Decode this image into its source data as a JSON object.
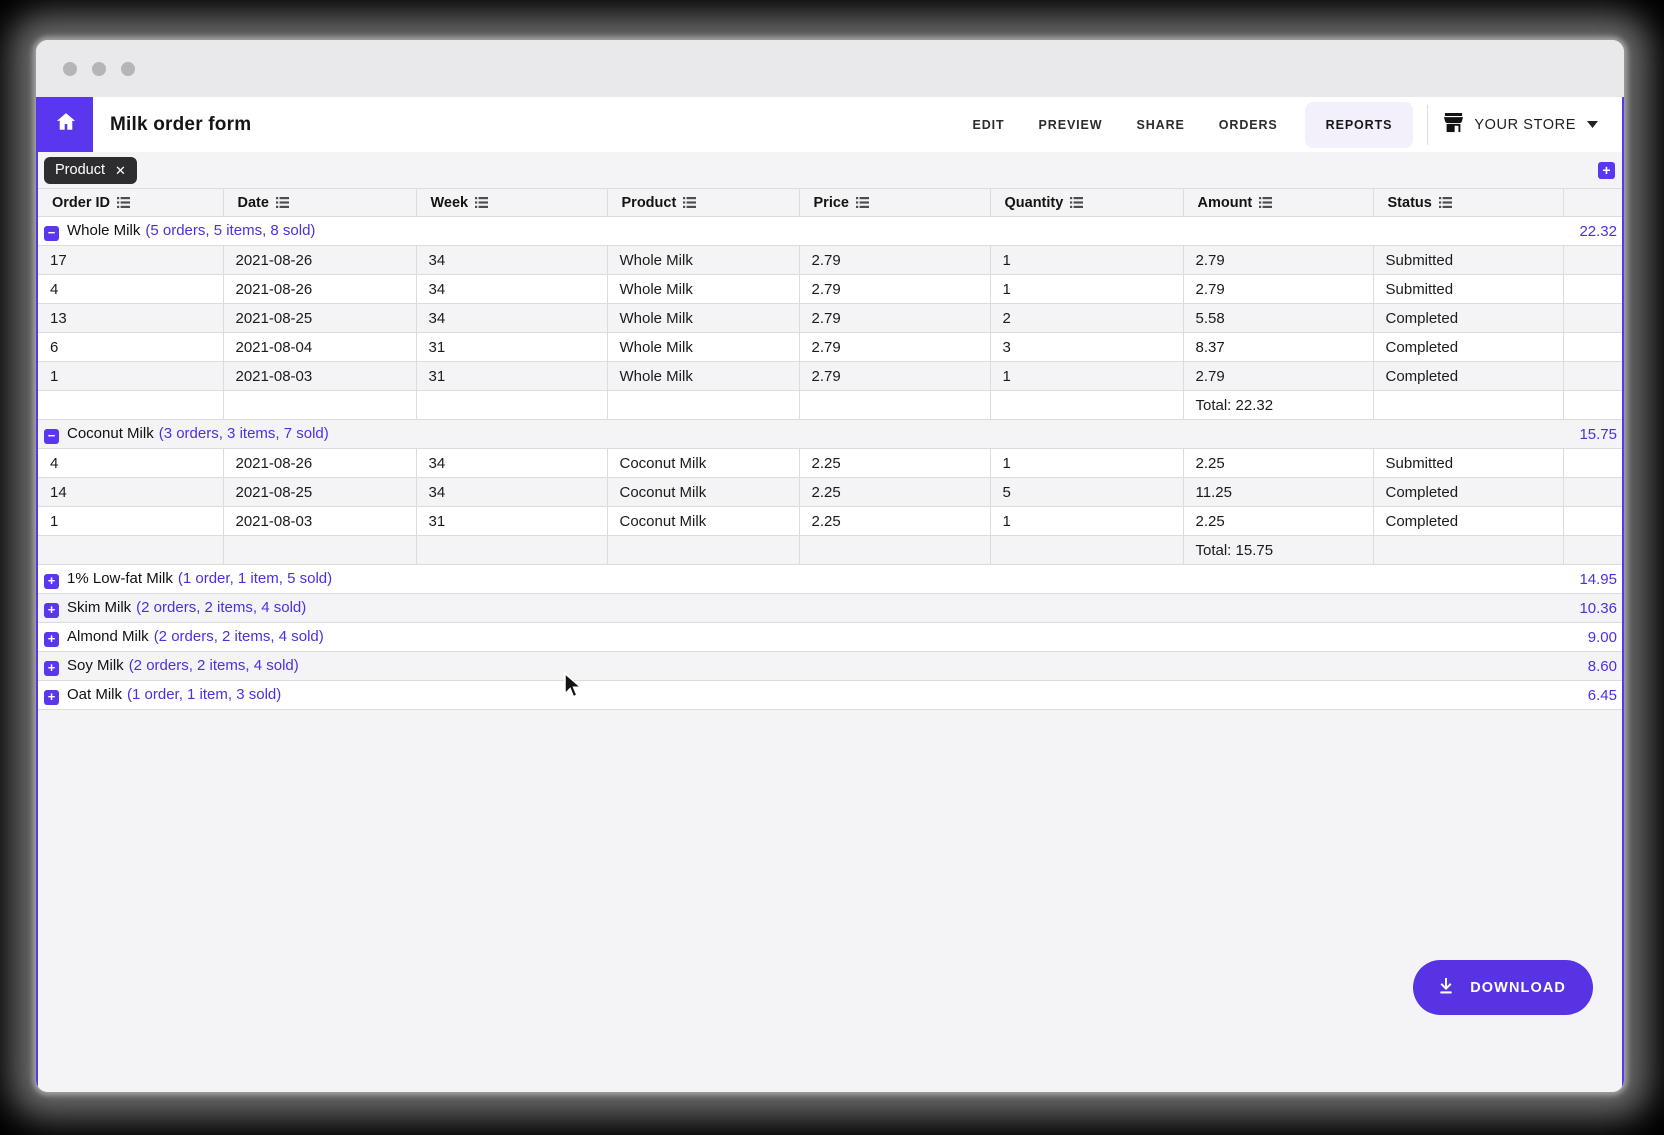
{
  "header": {
    "app_title": "Milk order form",
    "nav": [
      {
        "label": "EDIT"
      },
      {
        "label": "PREVIEW"
      },
      {
        "label": "SHARE"
      },
      {
        "label": "ORDERS"
      },
      {
        "label": "REPORTS"
      }
    ],
    "active_nav": "REPORTS",
    "store_label": "YOUR STORE"
  },
  "filter_bar": {
    "chip_label": "Product"
  },
  "icons": {
    "close": "✕",
    "plus": "+",
    "collapse": "−",
    "expand": "+"
  },
  "table": {
    "columns": [
      "Order ID",
      "Date",
      "Week",
      "Product",
      "Price",
      "Quantity",
      "Amount",
      "Status"
    ],
    "groups": [
      {
        "name": "Whole Milk",
        "summary": "(5 orders, 5 items, 8 sold)",
        "total": "22.32",
        "expanded": true,
        "rows": [
          [
            "17",
            "2021-08-26",
            "34",
            "Whole Milk",
            "2.79",
            "1",
            "2.79",
            "Submitted"
          ],
          [
            "4",
            "2021-08-26",
            "34",
            "Whole Milk",
            "2.79",
            "1",
            "2.79",
            "Submitted"
          ],
          [
            "13",
            "2021-08-25",
            "34",
            "Whole Milk",
            "2.79",
            "2",
            "5.58",
            "Completed"
          ],
          [
            "6",
            "2021-08-04",
            "31",
            "Whole Milk",
            "2.79",
            "3",
            "8.37",
            "Completed"
          ],
          [
            "1",
            "2021-08-03",
            "31",
            "Whole Milk",
            "2.79",
            "1",
            "2.79",
            "Completed"
          ]
        ],
        "total_label": "Total: 22.32"
      },
      {
        "name": "Coconut Milk",
        "summary": "(3 orders, 3 items, 7 sold)",
        "total": "15.75",
        "expanded": true,
        "rows": [
          [
            "4",
            "2021-08-26",
            "34",
            "Coconut Milk",
            "2.25",
            "1",
            "2.25",
            "Submitted"
          ],
          [
            "14",
            "2021-08-25",
            "34",
            "Coconut Milk",
            "2.25",
            "5",
            "11.25",
            "Completed"
          ],
          [
            "1",
            "2021-08-03",
            "31",
            "Coconut Milk",
            "2.25",
            "1",
            "2.25",
            "Completed"
          ]
        ],
        "total_label": "Total: 15.75"
      },
      {
        "name": "1% Low-fat Milk",
        "summary": "(1 order, 1 item, 5 sold)",
        "total": "14.95",
        "expanded": false,
        "rows": []
      },
      {
        "name": "Skim Milk",
        "summary": "(2 orders, 2 items, 4 sold)",
        "total": "10.36",
        "expanded": false,
        "rows": []
      },
      {
        "name": "Almond Milk",
        "summary": "(2 orders, 2 items, 4 sold)",
        "total": "9.00",
        "expanded": false,
        "rows": []
      },
      {
        "name": "Soy Milk",
        "summary": "(2 orders, 2 items, 4 sold)",
        "total": "8.60",
        "expanded": false,
        "rows": []
      },
      {
        "name": "Oat Milk",
        "summary": "(1 order, 1 item, 3 sold)",
        "total": "6.45",
        "expanded": false,
        "rows": []
      }
    ]
  },
  "download": {
    "label": "DOWNLOAD"
  },
  "colors": {
    "accent": "#5a36ee",
    "accent_text": "#4f2ee0",
    "download_button": "#5733e3",
    "chip_bg": "#2d2d30",
    "titlebar": "#e9e9eb",
    "row_stripe": "#f4f4f6"
  }
}
